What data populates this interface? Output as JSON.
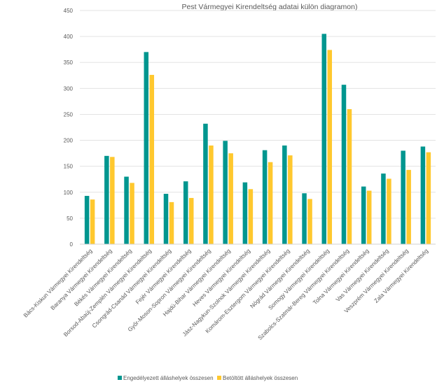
{
  "chart_data": {
    "type": "bar",
    "title": "Pest Vármegyei Kirendeltség adatai külön diagramon)",
    "xlabel": "",
    "ylabel": "",
    "ylim": [
      0,
      450
    ],
    "yticks": [
      0,
      50,
      100,
      150,
      200,
      250,
      300,
      350,
      400,
      450
    ],
    "grid": true,
    "legend_position": "bottom",
    "categories": [
      "Bács-Kiskun Vármegyei Kirendeltség",
      "Baranya Vármegyei Kirendeltség",
      "Békés Vármegyei Kirendeltség",
      "Borsod-Abaúj-Zemplén Vármegyei Kirendeltség",
      "Csongrád-Csanád Vármegyei Kirendeltség",
      "Fejér Vármegyei Kirendeltség",
      "Győr-Moson-Sopron Vármegyei Kirendeltség",
      "Hajdú-Bihar Vármegyei Kirendeltség",
      "Heves Vármegyei Kirendeltség",
      "Jász-Nagykun-Szolnok Vármegyei Kirendeltség",
      "Komárom-Esztergom Vármegyei Kirendeltség",
      "Nógrád Vármegyei Kirendeltség",
      "Somogy Vármegyei Kirendeltség",
      "Szabolcs-Szatmár-Bereg Vármegyei Kirendeltség",
      "Tolna Vármegyei Kirendeltség",
      "Vas Vármegyei Kirendeltség",
      "Veszprém Vármegyei Kirendeltség",
      "Zala Vármegyei Kirendeltség"
    ],
    "series": [
      {
        "name": "Engedélyezett álláshelyek összesen",
        "color": "#00968F",
        "values": [
          93,
          170,
          130,
          370,
          97,
          121,
          232,
          199,
          119,
          181,
          190,
          98,
          405,
          307,
          111,
          136,
          180,
          188
        ]
      },
      {
        "name": "Betöltött álláshelyek összesen",
        "color": "#FFC82E",
        "values": [
          86,
          168,
          118,
          326,
          81,
          89,
          190,
          175,
          106,
          158,
          171,
          87,
          374,
          260,
          103,
          126,
          143,
          177
        ]
      }
    ]
  }
}
